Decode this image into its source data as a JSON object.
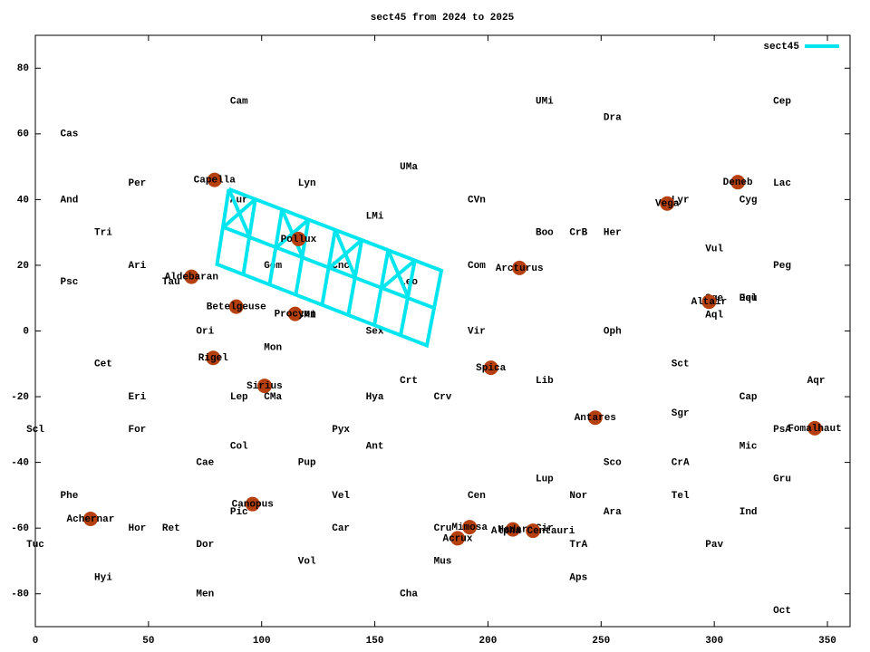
{
  "chart_data": {
    "type": "scatter",
    "title": "sect45 from 2024 to 2025",
    "xlim": [
      0,
      360
    ],
    "ylim": [
      -90,
      90
    ],
    "xticks": [
      0,
      50,
      100,
      150,
      200,
      250,
      300,
      350
    ],
    "yticks": [
      -80,
      -60,
      -40,
      -20,
      0,
      20,
      40,
      60,
      80
    ],
    "legend": "top-right",
    "annotations": [
      {
        "text": "Cam",
        "x": 90,
        "y": 70
      },
      {
        "text": "UMi",
        "x": 225,
        "y": 70
      },
      {
        "text": "Cep",
        "x": 330,
        "y": 70
      },
      {
        "text": "Dra",
        "x": 255,
        "y": 65
      },
      {
        "text": "Cas",
        "x": 15,
        "y": 60
      },
      {
        "text": "UMa",
        "x": 165,
        "y": 50
      },
      {
        "text": "Per",
        "x": 45,
        "y": 45
      },
      {
        "text": "Lyn",
        "x": 120,
        "y": 45
      },
      {
        "text": "Lac",
        "x": 330,
        "y": 45
      },
      {
        "text": "And",
        "x": 15,
        "y": 40
      },
      {
        "text": "Aur",
        "x": 90,
        "y": 40
      },
      {
        "text": "CVn",
        "x": 195,
        "y": 40
      },
      {
        "text": "Lyr",
        "x": 285,
        "y": 40
      },
      {
        "text": "Cyg",
        "x": 315,
        "y": 40
      },
      {
        "text": "LMi",
        "x": 150,
        "y": 35
      },
      {
        "text": "Tri",
        "x": 30,
        "y": 30
      },
      {
        "text": "Boo",
        "x": 225,
        "y": 30
      },
      {
        "text": "CrB",
        "x": 240,
        "y": 30
      },
      {
        "text": "Her",
        "x": 255,
        "y": 30
      },
      {
        "text": "Vul",
        "x": 300,
        "y": 25
      },
      {
        "text": "Ari",
        "x": 45,
        "y": 20
      },
      {
        "text": "Gem",
        "x": 105,
        "y": 20
      },
      {
        "text": "Cnc",
        "x": 135,
        "y": 20
      },
      {
        "text": "Com",
        "x": 195,
        "y": 20
      },
      {
        "text": "Peg",
        "x": 330,
        "y": 20
      },
      {
        "text": "Psc",
        "x": 15,
        "y": 15
      },
      {
        "text": "Tau",
        "x": 60,
        "y": 15
      },
      {
        "text": "Leo",
        "x": 165,
        "y": 15
      },
      {
        "text": "Sge",
        "x": 300,
        "y": 10
      },
      {
        "text": "Equ",
        "x": 315,
        "y": 10
      },
      {
        "text": "Del",
        "x": 315,
        "y": 10
      },
      {
        "text": "CMi",
        "x": 120,
        "y": 5
      },
      {
        "text": "Aql",
        "x": 300,
        "y": 5
      },
      {
        "text": "Ori",
        "x": 75,
        "y": 0
      },
      {
        "text": "Sex",
        "x": 150,
        "y": 0
      },
      {
        "text": "Vir",
        "x": 195,
        "y": 0
      },
      {
        "text": "Oph",
        "x": 255,
        "y": 0
      },
      {
        "text": "Mon",
        "x": 105,
        "y": -5
      },
      {
        "text": "Cet",
        "x": 30,
        "y": -10
      },
      {
        "text": "Sct",
        "x": 285,
        "y": -10
      },
      {
        "text": "Crt",
        "x": 165,
        "y": -15
      },
      {
        "text": "Lib",
        "x": 225,
        "y": -15
      },
      {
        "text": "Aqr",
        "x": 345,
        "y": -15
      },
      {
        "text": "Eri",
        "x": 45,
        "y": -20
      },
      {
        "text": "Lep",
        "x": 90,
        "y": -20
      },
      {
        "text": "CMa",
        "x": 105,
        "y": -20
      },
      {
        "text": "Hya",
        "x": 150,
        "y": -20
      },
      {
        "text": "Crv",
        "x": 180,
        "y": -20
      },
      {
        "text": "Cap",
        "x": 315,
        "y": -20
      },
      {
        "text": "Sgr",
        "x": 285,
        "y": -25
      },
      {
        "text": "Scl",
        "x": 0,
        "y": -30
      },
      {
        "text": "For",
        "x": 45,
        "y": -30
      },
      {
        "text": "Pyx",
        "x": 135,
        "y": -30
      },
      {
        "text": "PsA",
        "x": 330,
        "y": -30
      },
      {
        "text": "Col",
        "x": 90,
        "y": -35
      },
      {
        "text": "Ant",
        "x": 150,
        "y": -35
      },
      {
        "text": "Mic",
        "x": 315,
        "y": -35
      },
      {
        "text": "Cae",
        "x": 75,
        "y": -40
      },
      {
        "text": "Pup",
        "x": 120,
        "y": -40
      },
      {
        "text": "Sco",
        "x": 255,
        "y": -40
      },
      {
        "text": "CrA",
        "x": 285,
        "y": -40
      },
      {
        "text": "Lup",
        "x": 225,
        "y": -45
      },
      {
        "text": "Gru",
        "x": 330,
        "y": -45
      },
      {
        "text": "Phe",
        "x": 15,
        "y": -50
      },
      {
        "text": "Vel",
        "x": 135,
        "y": -50
      },
      {
        "text": "Cen",
        "x": 195,
        "y": -50
      },
      {
        "text": "Nor",
        "x": 240,
        "y": -50
      },
      {
        "text": "Tel",
        "x": 285,
        "y": -50
      },
      {
        "text": "Pic",
        "x": 90,
        "y": -55
      },
      {
        "text": "Ara",
        "x": 255,
        "y": -55
      },
      {
        "text": "Ind",
        "x": 315,
        "y": -55
      },
      {
        "text": "Hor",
        "x": 45,
        "y": -60
      },
      {
        "text": "Ret",
        "x": 60,
        "y": -60
      },
      {
        "text": "Car",
        "x": 135,
        "y": -60
      },
      {
        "text": "Cru",
        "x": 180,
        "y": -60
      },
      {
        "text": "Cir",
        "x": 225,
        "y": -60
      },
      {
        "text": "Tuc",
        "x": 0,
        "y": -65
      },
      {
        "text": "Dor",
        "x": 75,
        "y": -65
      },
      {
        "text": "TrA",
        "x": 240,
        "y": -65
      },
      {
        "text": "Pav",
        "x": 300,
        "y": -65
      },
      {
        "text": "Vol",
        "x": 120,
        "y": -70
      },
      {
        "text": "Mus",
        "x": 180,
        "y": -70
      },
      {
        "text": "Hyi",
        "x": 30,
        "y": -75
      },
      {
        "text": "Aps",
        "x": 240,
        "y": -75
      },
      {
        "text": "Men",
        "x": 75,
        "y": -80
      },
      {
        "text": "Cha",
        "x": 165,
        "y": -80
      },
      {
        "text": "Oct",
        "x": 330,
        "y": -85
      }
    ],
    "markers": {
      "color": "#b5400e",
      "labels": [
        "Capella",
        "Aldebaran",
        "Betelgeuse",
        "Rigel",
        "Sirius",
        "Procyon",
        "Pollux",
        "Canopus",
        "Achernar",
        "Acrux",
        "Mimosa",
        "Hadar",
        "Alpha Centauri",
        "Spica",
        "Arcturus",
        "Antares",
        "Vega",
        "Altair",
        "Deneb",
        "Fomalhaut"
      ],
      "x": [
        79.2,
        69,
        88.8,
        78.6,
        101.3,
        114.8,
        116.3,
        96,
        24.4,
        186.6,
        191.9,
        211,
        219.9,
        201.3,
        213.9,
        247.4,
        279.2,
        297.7,
        310.4,
        344.4
      ],
      "values": [
        46,
        16.5,
        7.4,
        -8.2,
        -16.7,
        5.2,
        28,
        -52.7,
        -57.2,
        -63.1,
        -59.7,
        -60.4,
        -60.8,
        -11.2,
        19.2,
        -26.4,
        38.8,
        8.9,
        45.3,
        -29.6
      ]
    },
    "series": [
      {
        "name": "sect45",
        "color": "#00e5ee",
        "x": [
          85.5,
          179.4,
          173,
          80.3,
          85.5,
          null,
          83.1,
          176.6,
          null,
          97.2,
          91.9,
          null,
          109,
          103.5,
          null,
          120.7,
          115.1,
          null,
          132.5,
          126.7,
          null,
          144.2,
          138.3,
          null,
          155.9,
          149.8,
          null,
          167.7,
          161.4,
          null,
          85.5,
          94.8,
          null,
          97.2,
          83.1,
          null,
          109,
          118.2,
          null,
          120.7,
          106.5,
          null,
          132.5,
          141.5,
          null,
          144.2,
          129.9,
          null,
          155.9,
          164.9,
          null,
          167.7,
          153.2
        ],
        "values": [
          43.2,
          18.4,
          -4.4,
          20.3,
          43.2,
          null,
          31.6,
          6.9,
          null,
          40.1,
          17.2,
          null,
          37,
          14.1,
          null,
          33.9,
          11,
          null,
          30.8,
          7.9,
          null,
          27.7,
          4.9,
          null,
          24.6,
          1.8,
          null,
          21.5,
          -1.3,
          null,
          43.2,
          28.5,
          null,
          40.1,
          31.6,
          null,
          37,
          22.3,
          null,
          33.9,
          25.4,
          null,
          30.8,
          16.2,
          null,
          27.7,
          19.2,
          null,
          24.6,
          10,
          null,
          21.5,
          13.1
        ]
      }
    ]
  }
}
